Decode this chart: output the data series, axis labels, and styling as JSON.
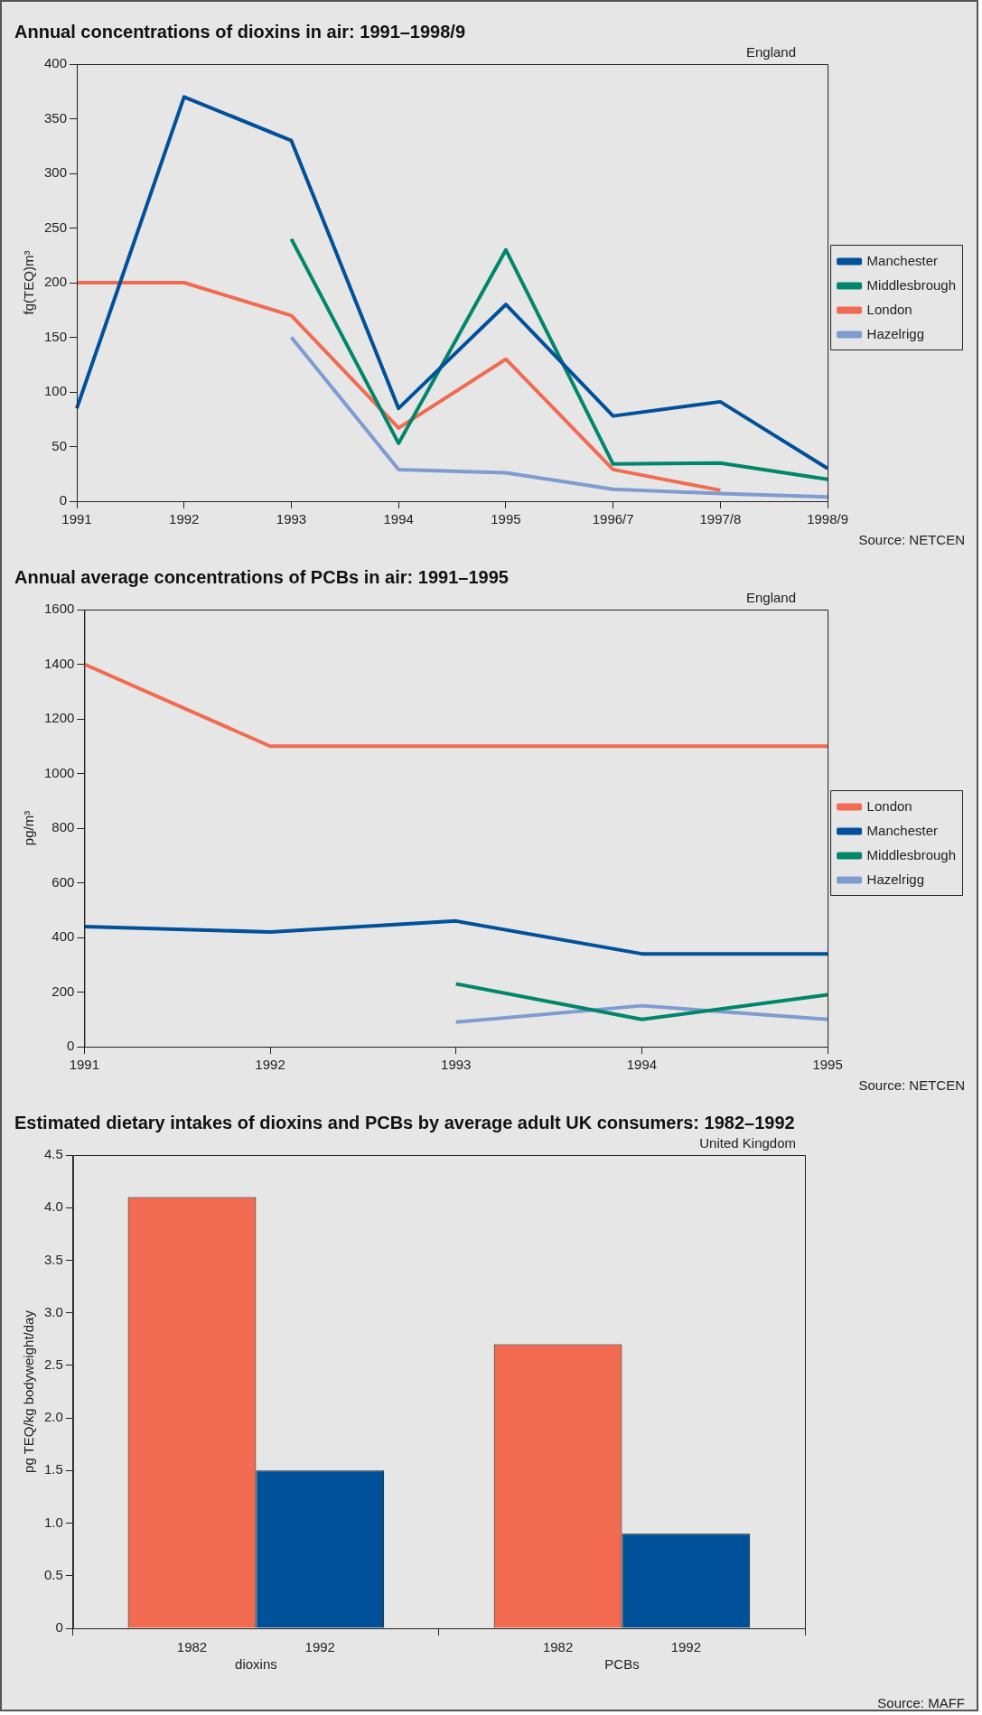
{
  "chart_data": [
    {
      "type": "line",
      "title": "Annual concentrations of dioxins in air: 1991–1998/9",
      "ylabel": "fg(TEQ)m³",
      "categories": [
        "1991",
        "1992",
        "1993",
        "1994",
        "1995",
        "1996/7",
        "1997/8",
        "1998/9"
      ],
      "series": [
        {
          "name": "Manchester",
          "color": "#00509a",
          "values": [
            85,
            370,
            330,
            85,
            180,
            78,
            91,
            30
          ]
        },
        {
          "name": "Middlesbrough",
          "color": "#00866a",
          "values": [
            null,
            null,
            240,
            53,
            230,
            34,
            35,
            20
          ]
        },
        {
          "name": "London",
          "color": "#f06b52",
          "values": [
            200,
            200,
            170,
            67,
            130,
            29,
            10,
            null
          ]
        },
        {
          "name": "Hazelrigg",
          "color": "#7f9bd0",
          "values": [
            null,
            null,
            150,
            29,
            26,
            11,
            7,
            4
          ]
        }
      ],
      "ylim": [
        0,
        400
      ],
      "yticks": [
        0,
        50,
        100,
        150,
        200,
        250,
        300,
        350,
        400
      ],
      "grid": false,
      "legend": "right",
      "marker": "none",
      "annotations": [
        "England",
        "Source: NETCEN"
      ]
    },
    {
      "type": "line",
      "title": "Annual average concentrations of PCBs in air: 1991–1995",
      "ylabel": "pg/m³",
      "categories": [
        "1991",
        "1992",
        "1993",
        "1994",
        "1995"
      ],
      "series": [
        {
          "name": "London",
          "color": "#f06b52",
          "values": [
            1400,
            1100,
            1100,
            1100,
            1100
          ]
        },
        {
          "name": "Manchester",
          "color": "#00509a",
          "values": [
            440,
            420,
            460,
            340,
            340
          ]
        },
        {
          "name": "Middlesbrough",
          "color": "#00866a",
          "values": [
            null,
            null,
            230,
            100,
            190
          ]
        },
        {
          "name": "Hazelrigg",
          "color": "#7f9bd0",
          "values": [
            null,
            null,
            90,
            150,
            100
          ]
        }
      ],
      "ylim": [
        0,
        1600
      ],
      "yticks": [
        0,
        200,
        400,
        600,
        800,
        1000,
        1200,
        1400,
        1600
      ],
      "grid": false,
      "legend": "right",
      "marker": "none",
      "annotations": [
        "England",
        "Source: NETCEN"
      ]
    },
    {
      "type": "bar",
      "title": "Estimated dietary intakes of dioxins and PCBs by average adult UK consumers: 1982–1992",
      "ylabel": "pg TEQ/kg bodyweight/day",
      "categories": [
        "dioxins",
        "PCBs"
      ],
      "series": [
        {
          "name": "1982",
          "color": "#f26a50",
          "values": [
            4.1,
            2.7
          ]
        },
        {
          "name": "1992",
          "color": "#00509a",
          "values": [
            1.5,
            0.9
          ]
        }
      ],
      "ylim": [
        0,
        4.5
      ],
      "yticks": [
        0,
        0.5,
        {
          "value": 1,
          "label": "1.0"
        },
        1.5,
        {
          "value": 2,
          "label": "2.0"
        },
        2.5,
        {
          "value": 3,
          "label": "3.0"
        },
        3.5,
        {
          "value": 4,
          "label": "4.0"
        },
        4.5
      ],
      "grid": false,
      "legend": false,
      "annotations": [
        "United Kingdom",
        "Source: MAFF"
      ]
    }
  ]
}
